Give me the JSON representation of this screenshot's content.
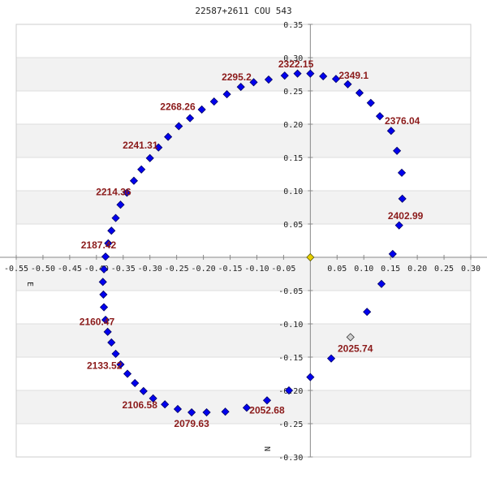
{
  "chart_data": {
    "type": "scatter",
    "title": "22587+2611 COU 543",
    "xlim": [
      -0.55,
      0.3
    ],
    "ylim": [
      -0.3,
      0.35
    ],
    "x_ticks": [
      -0.55,
      -0.5,
      -0.45,
      -0.4,
      -0.35,
      -0.3,
      -0.25,
      -0.2,
      -0.15,
      -0.1,
      -0.05,
      0.05,
      0.1,
      0.15,
      0.2,
      0.25,
      0.3
    ],
    "x_tick_labels": [
      "-0.55",
      "-0.50",
      "-0.45",
      "-0.40",
      "-0.35",
      "-0.30",
      "-0.25",
      "-0.20",
      "-0.15",
      "-0.10",
      "-0.05",
      "0.05",
      "0.10",
      "0.15",
      "0.20",
      "0.25",
      "0.30"
    ],
    "y_ticks": [
      0.35,
      0.3,
      0.25,
      0.2,
      0.15,
      0.1,
      0.05,
      -0.05,
      -0.1,
      -0.15,
      -0.2,
      -0.25,
      -0.3
    ],
    "y_tick_labels": [
      "0.35",
      "0.30",
      "0.25",
      "0.20",
      "0.15",
      "0.10",
      "0.05",
      "-0.05",
      "-0.10",
      "-0.15",
      "-0.20",
      "-0.25",
      "-0.30"
    ],
    "axis_letters": {
      "east": "E",
      "north": "N"
    },
    "colors": {
      "orbit_point": "#0000ee",
      "orbit_point_edge": "#000066",
      "label": "#8b1a1a",
      "primary": "#e8d000",
      "observed": "#d0d0d0",
      "band": "#f2f2f2",
      "grid": "#dddddd",
      "axis": "#888888"
    },
    "primary": {
      "x": 0.0,
      "y": 0.0
    },
    "observed_point": {
      "x": 0.075,
      "y": -0.12
    },
    "orbit_points": [
      {
        "x": 0.0,
        "y": -0.18
      },
      {
        "x": 0.039,
        "y": -0.152
      },
      {
        "x": 0.106,
        "y": -0.082
      },
      {
        "x": 0.133,
        "y": -0.04
      },
      {
        "x": 0.154,
        "y": 0.005
      },
      {
        "x": 0.166,
        "y": 0.048
      },
      {
        "x": 0.172,
        "y": 0.088
      },
      {
        "x": 0.171,
        "y": 0.127
      },
      {
        "x": 0.162,
        "y": 0.16
      },
      {
        "x": 0.151,
        "y": 0.19
      },
      {
        "x": 0.13,
        "y": 0.212
      },
      {
        "x": 0.113,
        "y": 0.232
      },
      {
        "x": 0.092,
        "y": 0.247
      },
      {
        "x": 0.07,
        "y": 0.26
      },
      {
        "x": 0.048,
        "y": 0.268
      },
      {
        "x": 0.024,
        "y": 0.272
      },
      {
        "x": 0.0,
        "y": 0.276
      },
      {
        "x": -0.024,
        "y": 0.276
      },
      {
        "x": -0.048,
        "y": 0.273
      },
      {
        "x": -0.078,
        "y": 0.267
      },
      {
        "x": -0.106,
        "y": 0.263
      },
      {
        "x": -0.13,
        "y": 0.256
      },
      {
        "x": -0.156,
        "y": 0.245
      },
      {
        "x": -0.18,
        "y": 0.234
      },
      {
        "x": -0.203,
        "y": 0.222
      },
      {
        "x": -0.225,
        "y": 0.209
      },
      {
        "x": -0.246,
        "y": 0.197
      },
      {
        "x": -0.266,
        "y": 0.181
      },
      {
        "x": -0.284,
        "y": 0.165
      },
      {
        "x": -0.3,
        "y": 0.149
      },
      {
        "x": -0.316,
        "y": 0.132
      },
      {
        "x": -0.33,
        "y": 0.115
      },
      {
        "x": -0.343,
        "y": 0.097
      },
      {
        "x": -0.355,
        "y": 0.079
      },
      {
        "x": -0.364,
        "y": 0.059
      },
      {
        "x": -0.372,
        "y": 0.04
      },
      {
        "x": -0.378,
        "y": 0.021
      },
      {
        "x": -0.383,
        "y": 0.001
      },
      {
        "x": -0.386,
        "y": -0.018
      },
      {
        "x": -0.388,
        "y": -0.037
      },
      {
        "x": -0.387,
        "y": -0.056
      },
      {
        "x": -0.386,
        "y": -0.075
      },
      {
        "x": -0.383,
        "y": -0.094
      },
      {
        "x": -0.379,
        "y": -0.112
      },
      {
        "x": -0.372,
        "y": -0.128
      },
      {
        "x": -0.364,
        "y": -0.145
      },
      {
        "x": -0.355,
        "y": -0.161
      },
      {
        "x": -0.342,
        "y": -0.175
      },
      {
        "x": -0.328,
        "y": -0.189
      },
      {
        "x": -0.312,
        "y": -0.201
      },
      {
        "x": -0.294,
        "y": -0.212
      },
      {
        "x": -0.272,
        "y": -0.221
      },
      {
        "x": -0.248,
        "y": -0.228
      },
      {
        "x": -0.222,
        "y": -0.233
      },
      {
        "x": -0.194,
        "y": -0.233
      },
      {
        "x": -0.159,
        "y": -0.232
      },
      {
        "x": -0.119,
        "y": -0.226
      },
      {
        "x": -0.081,
        "y": -0.215
      },
      {
        "x": -0.04,
        "y": -0.2
      }
    ],
    "labels": [
      {
        "text": "2025.74",
        "x": 0.084,
        "y": -0.137
      },
      {
        "text": "2052.68",
        "x": -0.081,
        "y": -0.23
      },
      {
        "text": "2079.63",
        "x": -0.222,
        "y": -0.25
      },
      {
        "text": "2106.58",
        "x": -0.319,
        "y": -0.222
      },
      {
        "text": "2133.52",
        "x": -0.385,
        "y": -0.163
      },
      {
        "text": "2160.47",
        "x": -0.399,
        "y": -0.097
      },
      {
        "text": "2187.42",
        "x": -0.396,
        "y": 0.018
      },
      {
        "text": "2214.36",
        "x": -0.368,
        "y": 0.098
      },
      {
        "text": "2241.31",
        "x": -0.318,
        "y": 0.168
      },
      {
        "text": "2268.26",
        "x": -0.248,
        "y": 0.226
      },
      {
        "text": "2295.2",
        "x": -0.138,
        "y": 0.271
      },
      {
        "text": "2322.15",
        "x": -0.027,
        "y": 0.29
      },
      {
        "text": "2349.1",
        "x": 0.081,
        "y": 0.273
      },
      {
        "text": "2376.04",
        "x": 0.172,
        "y": 0.205
      },
      {
        "text": "2402.99",
        "x": 0.178,
        "y": 0.062
      }
    ]
  }
}
